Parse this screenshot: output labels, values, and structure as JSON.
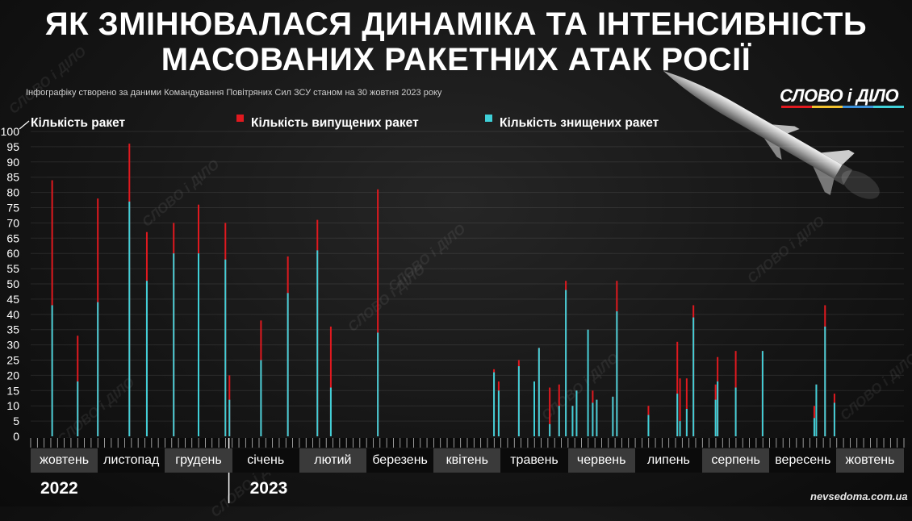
{
  "title_line1": "ЯК ЗМІНЮВАЛАСЯ ДИНАМІКА ТА ІНТЕНСИВНІСТЬ",
  "title_line2": "МАСОВАНИХ РАКЕТНИХ АТАК РОСІЇ",
  "subtitle": "Інфографіку створено за даними Командування Повітряних Сил ЗСУ станом на 30 жовтня 2023 року",
  "logo": "СЛОВО і ДІЛО",
  "watermark": "СЛОВО і ДІЛО",
  "source": "nevsedoma.com.ua",
  "colors": {
    "launched": "#e0191f",
    "destroyed": "#3fd0d8",
    "logo_bar": [
      "#e0191f",
      "#f2c12e",
      "#3a8fd8",
      "#3fd0d8"
    ]
  },
  "chart_data": {
    "type": "bar",
    "ylabel": "Кількість  ракет",
    "ylim": [
      0,
      100
    ],
    "yticks": [
      0,
      5,
      10,
      15,
      20,
      25,
      30,
      35,
      40,
      45,
      50,
      55,
      60,
      65,
      70,
      75,
      80,
      85,
      90,
      95,
      100
    ],
    "legend": [
      {
        "name": "Кількість випущених ракет",
        "color": "#e0191f"
      },
      {
        "name": "Кількість знищених ракет",
        "color": "#3fd0d8"
      }
    ],
    "x_months": [
      "жовтень",
      "листопад",
      "грудень",
      "січень",
      "лютий",
      "березень",
      "квітень",
      "травень",
      "червень",
      "липень",
      "серпень",
      "вересень",
      "жовтень"
    ],
    "years": [
      "2022",
      "2023"
    ],
    "x_unit": "month index (0 = жовтень 2022, 12 = жовтень 2023)",
    "series": [
      {
        "name": "Кількість випущених ракет",
        "points": [
          {
            "x": 0.32,
            "y": 84
          },
          {
            "x": 0.7,
            "y": 33
          },
          {
            "x": 1.0,
            "y": 78
          },
          {
            "x": 1.47,
            "y": 96
          },
          {
            "x": 1.73,
            "y": 67
          },
          {
            "x": 2.13,
            "y": 70
          },
          {
            "x": 2.5,
            "y": 76
          },
          {
            "x": 2.9,
            "y": 70
          },
          {
            "x": 2.96,
            "y": 20
          },
          {
            "x": 3.43,
            "y": 38
          },
          {
            "x": 3.83,
            "y": 59
          },
          {
            "x": 4.27,
            "y": 71
          },
          {
            "x": 4.47,
            "y": 36
          },
          {
            "x": 5.17,
            "y": 81
          },
          {
            "x": 6.9,
            "y": 22
          },
          {
            "x": 6.97,
            "y": 18
          },
          {
            "x": 7.27,
            "y": 25
          },
          {
            "x": 7.5,
            "y": 18
          },
          {
            "x": 7.57,
            "y": 29
          },
          {
            "x": 7.73,
            "y": 16
          },
          {
            "x": 7.87,
            "y": 17
          },
          {
            "x": 7.97,
            "y": 51
          },
          {
            "x": 8.07,
            "y": 10
          },
          {
            "x": 8.13,
            "y": 15
          },
          {
            "x": 8.3,
            "y": 35
          },
          {
            "x": 8.37,
            "y": 15
          },
          {
            "x": 8.43,
            "y": 12
          },
          {
            "x": 8.67,
            "y": 13
          },
          {
            "x": 8.73,
            "y": 51
          },
          {
            "x": 9.2,
            "y": 10
          },
          {
            "x": 9.63,
            "y": 31
          },
          {
            "x": 9.67,
            "y": 19
          },
          {
            "x": 9.77,
            "y": 19
          },
          {
            "x": 9.87,
            "y": 43
          },
          {
            "x": 10.2,
            "y": 17
          },
          {
            "x": 10.23,
            "y": 26
          },
          {
            "x": 10.5,
            "y": 28
          },
          {
            "x": 10.9,
            "y": 28
          },
          {
            "x": 11.67,
            "y": 10
          },
          {
            "x": 11.7,
            "y": 17
          },
          {
            "x": 11.83,
            "y": 43
          },
          {
            "x": 11.97,
            "y": 14
          }
        ]
      },
      {
        "name": "Кількість знищених ракет",
        "points": [
          {
            "x": 0.32,
            "y": 43
          },
          {
            "x": 0.7,
            "y": 18
          },
          {
            "x": 1.0,
            "y": 44
          },
          {
            "x": 1.47,
            "y": 77
          },
          {
            "x": 1.73,
            "y": 51
          },
          {
            "x": 2.13,
            "y": 60
          },
          {
            "x": 2.5,
            "y": 60
          },
          {
            "x": 2.9,
            "y": 58
          },
          {
            "x": 2.96,
            "y": 12
          },
          {
            "x": 3.43,
            "y": 25
          },
          {
            "x": 3.83,
            "y": 47
          },
          {
            "x": 4.27,
            "y": 61
          },
          {
            "x": 4.47,
            "y": 16
          },
          {
            "x": 5.17,
            "y": 34
          },
          {
            "x": 6.9,
            "y": 21
          },
          {
            "x": 6.97,
            "y": 15
          },
          {
            "x": 7.27,
            "y": 23
          },
          {
            "x": 7.5,
            "y": 18
          },
          {
            "x": 7.57,
            "y": 29
          },
          {
            "x": 7.73,
            "y": 4
          },
          {
            "x": 7.87,
            "y": 10
          },
          {
            "x": 7.97,
            "y": 48
          },
          {
            "x": 8.07,
            "y": 10
          },
          {
            "x": 8.13,
            "y": 15
          },
          {
            "x": 8.3,
            "y": 35
          },
          {
            "x": 8.37,
            "y": 11
          },
          {
            "x": 8.43,
            "y": 12
          },
          {
            "x": 8.67,
            "y": 13
          },
          {
            "x": 8.73,
            "y": 41
          },
          {
            "x": 9.2,
            "y": 7
          },
          {
            "x": 9.63,
            "y": 14
          },
          {
            "x": 9.67,
            "y": 5
          },
          {
            "x": 9.77,
            "y": 9
          },
          {
            "x": 9.87,
            "y": 39
          },
          {
            "x": 10.2,
            "y": 12
          },
          {
            "x": 10.23,
            "y": 18
          },
          {
            "x": 10.5,
            "y": 16
          },
          {
            "x": 10.9,
            "y": 28
          },
          {
            "x": 11.67,
            "y": 6
          },
          {
            "x": 11.7,
            "y": 17
          },
          {
            "x": 11.83,
            "y": 36
          },
          {
            "x": 11.97,
            "y": 11
          }
        ]
      }
    ]
  }
}
